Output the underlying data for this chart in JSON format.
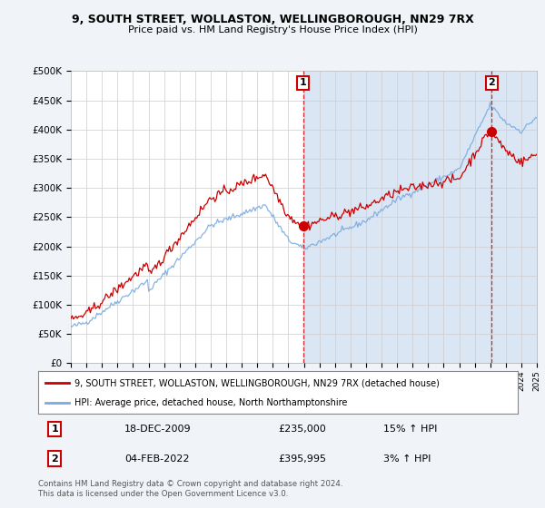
{
  "title_line1": "9, SOUTH STREET, WOLLASTON, WELLINGBOROUGH, NN29 7RX",
  "title_line2": "Price paid vs. HM Land Registry's House Price Index (HPI)",
  "ylim": [
    0,
    500000
  ],
  "yticks": [
    0,
    50000,
    100000,
    150000,
    200000,
    250000,
    300000,
    350000,
    400000,
    450000,
    500000
  ],
  "ytick_labels": [
    "£0",
    "£50K",
    "£100K",
    "£150K",
    "£200K",
    "£250K",
    "£300K",
    "£350K",
    "£400K",
    "£450K",
    "£500K"
  ],
  "year_start": 1995,
  "year_end": 2025,
  "sale1_year": 2009.96,
  "sale1_price": 235000,
  "sale2_year": 2022.09,
  "sale2_price": 395995,
  "property_color": "#cc0000",
  "hpi_color": "#7aabe0",
  "background_color": "#f0f4f8",
  "plot_bg_color": "#ffffff",
  "shade_color": "#dae6f3",
  "grid_color": "#cccccc",
  "legend_label_property": "9, SOUTH STREET, WOLLASTON, WELLINGBOROUGH, NN29 7RX (detached house)",
  "legend_label_hpi": "HPI: Average price, detached house, North Northamptonshire",
  "footer_text": "Contains HM Land Registry data © Crown copyright and database right 2024.\nThis data is licensed under the Open Government Licence v3.0.",
  "table_rows": [
    [
      "1",
      "18-DEC-2009",
      "£235,000",
      "15% ↑ HPI"
    ],
    [
      "2",
      "04-FEB-2022",
      "£395,995",
      "3% ↑ HPI"
    ]
  ]
}
